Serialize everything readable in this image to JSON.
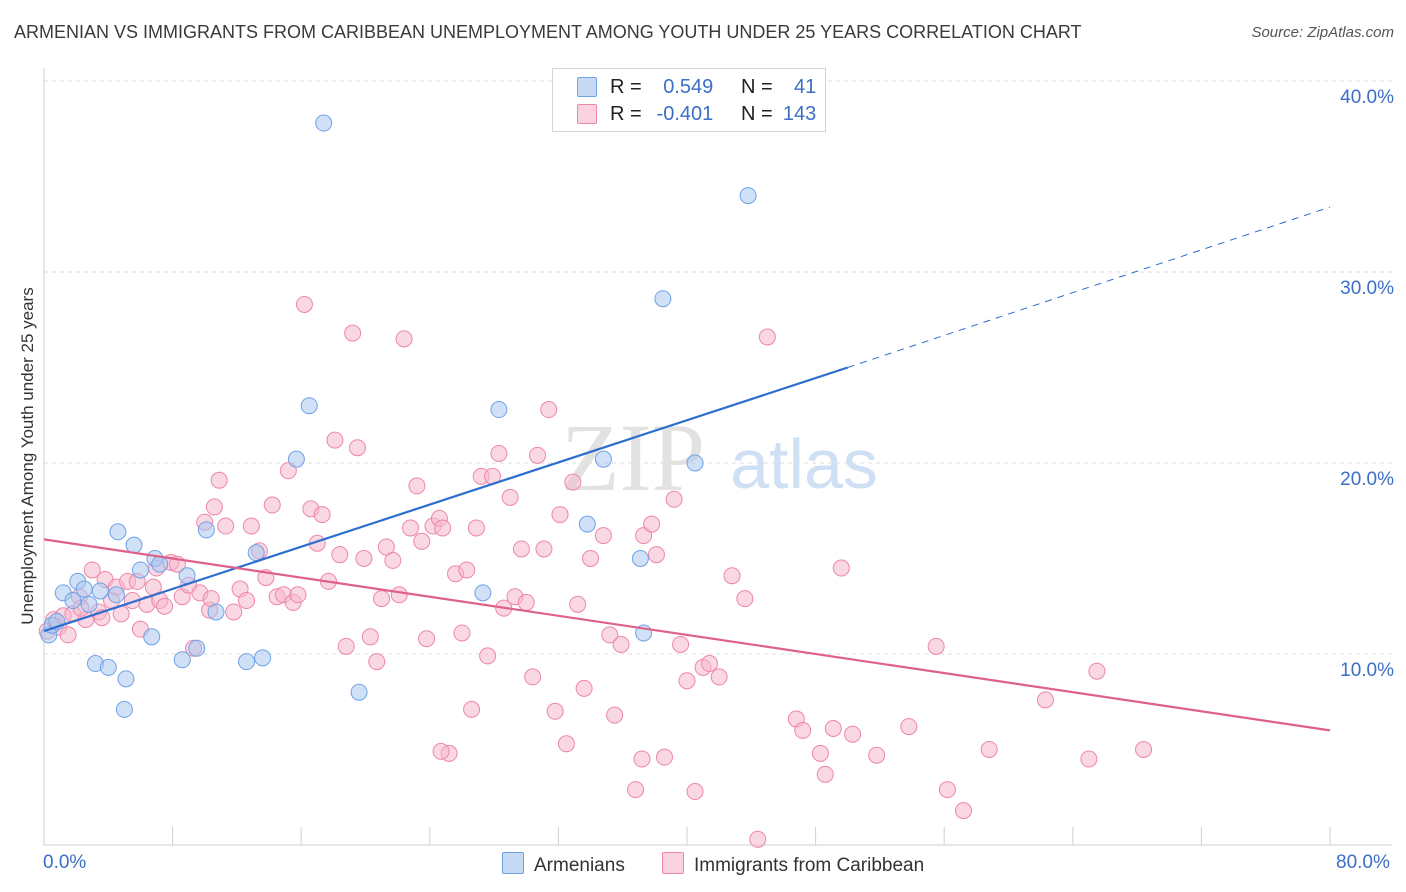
{
  "title": "ARMENIAN VS IMMIGRANTS FROM CARIBBEAN UNEMPLOYMENT AMONG YOUTH UNDER 25 YEARS CORRELATION CHART",
  "source": "Source: ZipAtlas.com",
  "watermark": {
    "zip": "ZIP",
    "atlas": "atlas"
  },
  "legend": {
    "rows": [
      {
        "r_label": "R =",
        "r_value": "0.549",
        "n_label": "N =",
        "n_value": "41",
        "color": "#a9c8f0"
      },
      {
        "r_label": "R =",
        "r_value": "-0.401",
        "n_label": "N =",
        "n_value": "143",
        "color": "#f6b8cc"
      }
    ]
  },
  "bottom_legend": [
    {
      "label": "Armenians",
      "color": "#a9c8f0"
    },
    {
      "label": "Immigrants from Caribbean",
      "color": "#f6b8cc"
    }
  ],
  "x_axis": {
    "min_label": "0.0%",
    "max_label": "80.0%"
  },
  "y_axis": {
    "ticks": [
      "10.0%",
      "20.0%",
      "30.0%",
      "40.0%"
    ]
  },
  "chart_data": {
    "type": "scatter",
    "title": "ARMENIAN VS IMMIGRANTS FROM CARIBBEAN UNEMPLOYMENT AMONG YOUTH UNDER 25 YEARS CORRELATION CHART",
    "xlabel": "",
    "ylabel": "Unemployment Among Youth under 25 years",
    "xlim": [
      0,
      80
    ],
    "ylim": [
      0,
      42
    ],
    "series": [
      {
        "name": "Armenians",
        "color": "#6fa3e8",
        "fill": "#a9c8f0",
        "trend": {
          "x": [
            0,
            50
          ],
          "y": [
            11.2,
            25
          ],
          "dash_to": [
            80,
            33.4
          ],
          "color": "#2d6ecf"
        },
        "points": [
          [
            0.3,
            11.0
          ],
          [
            0.5,
            11.5
          ],
          [
            0.8,
            11.7
          ],
          [
            1.2,
            13.2
          ],
          [
            1.8,
            12.8
          ],
          [
            2.1,
            13.8
          ],
          [
            2.5,
            13.4
          ],
          [
            2.8,
            12.6
          ],
          [
            3.2,
            9.5
          ],
          [
            4.0,
            9.3
          ],
          [
            3.5,
            13.3
          ],
          [
            4.5,
            13.1
          ],
          [
            4.6,
            16.4
          ],
          [
            5.1,
            8.7
          ],
          [
            5.6,
            15.7
          ],
          [
            6.0,
            14.4
          ],
          [
            5.0,
            7.1
          ],
          [
            6.9,
            15.0
          ],
          [
            6.7,
            10.9
          ],
          [
            7.2,
            14.7
          ],
          [
            8.6,
            9.7
          ],
          [
            8.9,
            14.1
          ],
          [
            9.5,
            10.3
          ],
          [
            10.1,
            16.5
          ],
          [
            10.7,
            12.2
          ],
          [
            12.6,
            9.6
          ],
          [
            13.2,
            15.3
          ],
          [
            13.6,
            9.8
          ],
          [
            15.7,
            20.2
          ],
          [
            16.5,
            23.0
          ],
          [
            17.4,
            37.8
          ],
          [
            19.6,
            8.0
          ],
          [
            27.3,
            13.2
          ],
          [
            28.3,
            22.8
          ],
          [
            33.8,
            16.8
          ],
          [
            34.8,
            20.2
          ],
          [
            37.1,
            15.0
          ],
          [
            37.3,
            11.1
          ],
          [
            38.5,
            28.6
          ],
          [
            40.5,
            20.0
          ],
          [
            43.8,
            34.0
          ]
        ]
      },
      {
        "name": "Immigrants from Caribbean",
        "color": "#ee86a8",
        "fill": "#f6b8cc",
        "trend": {
          "x": [
            0,
            80
          ],
          "y": [
            16,
            6
          ],
          "color": "#e0608c"
        },
        "points": [
          [
            0.2,
            11.2
          ],
          [
            0.6,
            11.8
          ],
          [
            0.9,
            11.4
          ],
          [
            1.2,
            12.0
          ],
          [
            1.5,
            11.0
          ],
          [
            1.8,
            12.1
          ],
          [
            2.2,
            13.0
          ],
          [
            2.6,
            11.8
          ],
          [
            3.0,
            14.4
          ],
          [
            3.4,
            12.2
          ],
          [
            3.8,
            13.9
          ],
          [
            4.2,
            12.8
          ],
          [
            4.5,
            13.5
          ],
          [
            4.8,
            12.1
          ],
          [
            5.2,
            13.8
          ],
          [
            5.5,
            12.8
          ],
          [
            5.8,
            13.8
          ],
          [
            6.0,
            11.3
          ],
          [
            6.4,
            12.6
          ],
          [
            6.8,
            13.5
          ],
          [
            7.2,
            12.8
          ],
          [
            7.5,
            12.5
          ],
          [
            7.9,
            14.8
          ],
          [
            8.3,
            14.7
          ],
          [
            8.6,
            13.0
          ],
          [
            9.0,
            13.6
          ],
          [
            9.3,
            10.3
          ],
          [
            9.7,
            13.2
          ],
          [
            10.0,
            16.9
          ],
          [
            10.3,
            12.3
          ],
          [
            10.6,
            17.7
          ],
          [
            10.9,
            19.1
          ],
          [
            11.3,
            16.7
          ],
          [
            11.8,
            12.2
          ],
          [
            12.2,
            13.4
          ],
          [
            12.6,
            12.8
          ],
          [
            12.9,
            16.7
          ],
          [
            13.4,
            15.4
          ],
          [
            13.8,
            14.0
          ],
          [
            14.2,
            17.8
          ],
          [
            14.5,
            13.0
          ],
          [
            14.9,
            13.1
          ],
          [
            15.2,
            19.6
          ],
          [
            15.5,
            12.7
          ],
          [
            15.8,
            13.1
          ],
          [
            16.2,
            28.3
          ],
          [
            16.6,
            17.6
          ],
          [
            17.0,
            15.8
          ],
          [
            17.3,
            17.3
          ],
          [
            17.7,
            13.8
          ],
          [
            18.1,
            21.2
          ],
          [
            18.4,
            15.2
          ],
          [
            18.8,
            10.4
          ],
          [
            19.2,
            26.8
          ],
          [
            19.5,
            20.8
          ],
          [
            19.9,
            15.0
          ],
          [
            20.3,
            10.9
          ],
          [
            20.7,
            9.6
          ],
          [
            21.0,
            12.9
          ],
          [
            21.3,
            15.6
          ],
          [
            21.7,
            14.9
          ],
          [
            22.1,
            13.1
          ],
          [
            22.4,
            26.5
          ],
          [
            22.8,
            16.6
          ],
          [
            23.2,
            18.8
          ],
          [
            23.5,
            15.9
          ],
          [
            23.8,
            10.8
          ],
          [
            24.2,
            16.7
          ],
          [
            24.6,
            17.1
          ],
          [
            24.8,
            16.6
          ],
          [
            25.2,
            4.8
          ],
          [
            25.6,
            14.2
          ],
          [
            26.0,
            11.1
          ],
          [
            26.3,
            14.4
          ],
          [
            26.6,
            7.1
          ],
          [
            26.9,
            16.6
          ],
          [
            27.2,
            19.3
          ],
          [
            27.6,
            9.9
          ],
          [
            27.9,
            19.3
          ],
          [
            28.3,
            20.5
          ],
          [
            28.6,
            12.4
          ],
          [
            29.0,
            18.2
          ],
          [
            29.3,
            13.0
          ],
          [
            29.7,
            15.5
          ],
          [
            30.0,
            12.7
          ],
          [
            30.4,
            8.8
          ],
          [
            30.7,
            20.4
          ],
          [
            31.1,
            15.5
          ],
          [
            31.4,
            22.8
          ],
          [
            31.8,
            7.0
          ],
          [
            32.1,
            17.3
          ],
          [
            32.5,
            5.3
          ],
          [
            32.9,
            19.0
          ],
          [
            33.2,
            12.6
          ],
          [
            33.6,
            8.2
          ],
          [
            34.0,
            15.0
          ],
          [
            34.8,
            16.2
          ],
          [
            35.2,
            11.0
          ],
          [
            35.5,
            6.8
          ],
          [
            35.9,
            10.5
          ],
          [
            36.8,
            2.9
          ],
          [
            37.2,
            4.5
          ],
          [
            37.3,
            16.2
          ],
          [
            37.8,
            16.8
          ],
          [
            38.1,
            15.2
          ],
          [
            38.6,
            4.6
          ],
          [
            39.2,
            18.1
          ],
          [
            39.6,
            10.5
          ],
          [
            40.0,
            8.6
          ],
          [
            40.5,
            2.8
          ],
          [
            41.0,
            9.3
          ],
          [
            41.4,
            9.5
          ],
          [
            42.0,
            8.8
          ],
          [
            42.8,
            14.1
          ],
          [
            43.6,
            12.9
          ],
          [
            44.4,
            0.3
          ],
          [
            45.0,
            26.6
          ],
          [
            46.8,
            6.6
          ],
          [
            47.2,
            6.0
          ],
          [
            48.3,
            4.8
          ],
          [
            48.6,
            3.7
          ],
          [
            49.1,
            6.1
          ],
          [
            49.6,
            14.5
          ],
          [
            50.3,
            5.8
          ],
          [
            51.8,
            4.7
          ],
          [
            53.8,
            6.2
          ],
          [
            55.5,
            10.4
          ],
          [
            56.2,
            2.9
          ],
          [
            57.2,
            1.8
          ],
          [
            58.8,
            5.0
          ],
          [
            62.3,
            7.6
          ],
          [
            65.0,
            4.5
          ],
          [
            65.5,
            9.1
          ],
          [
            68.4,
            5.0
          ],
          [
            24.7,
            4.9
          ],
          [
            10.4,
            12.9
          ],
          [
            7.0,
            14.5
          ],
          [
            3.6,
            11.9
          ],
          [
            2.3,
            12.4
          ]
        ]
      }
    ]
  }
}
